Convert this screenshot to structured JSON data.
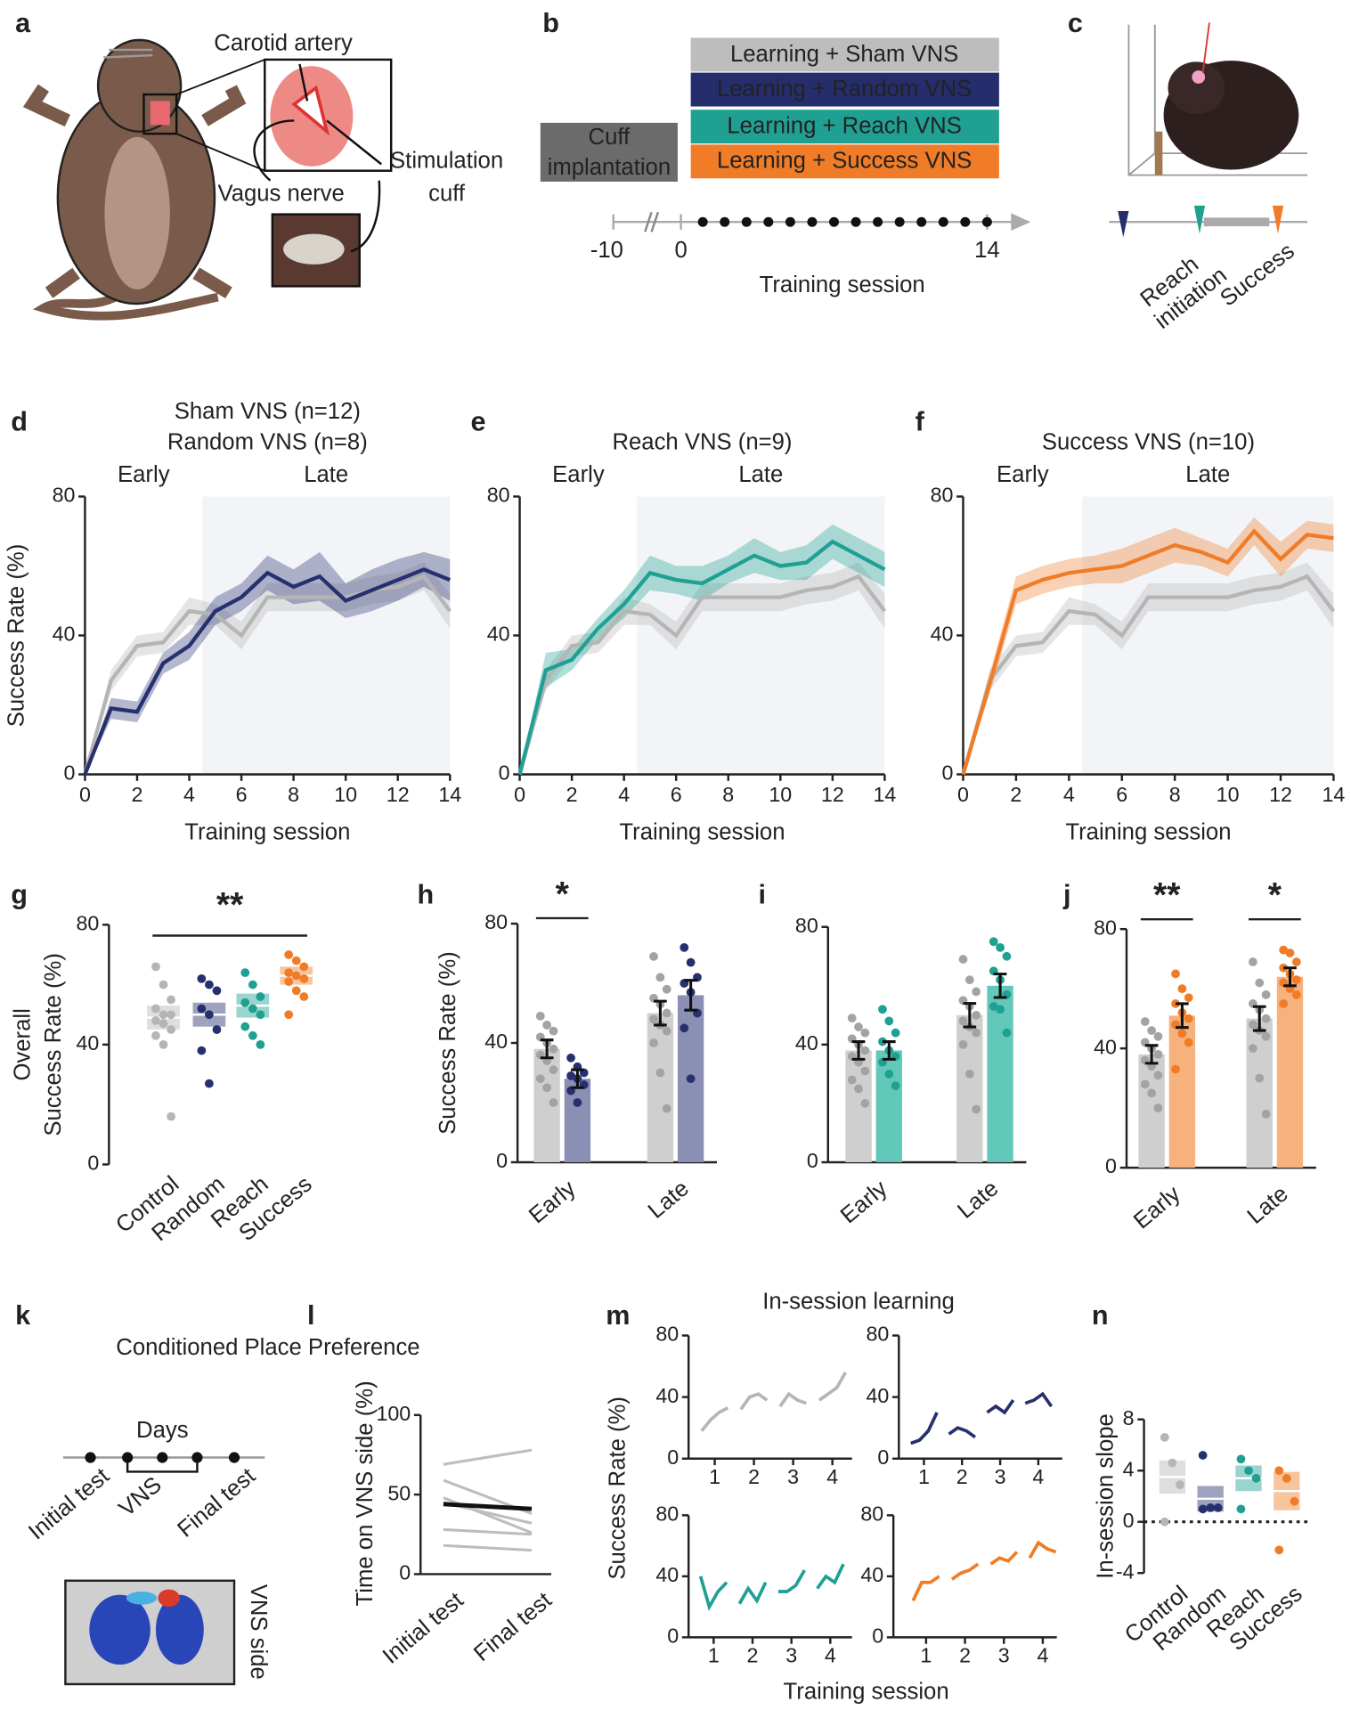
{
  "schematics": {
    "a": {
      "panel": "a",
      "labels": [
        "Carotid artery",
        "Vagus nerve",
        "Stimulation",
        "cuff"
      ]
    },
    "b": {
      "panel": "b",
      "groups": [
        {
          "name": "Learning + Sham VNS",
          "color": "#bdbdbd"
        },
        {
          "name": "Learning + Random VNS",
          "color": "#252d6d"
        },
        {
          "name": "Learning + Reach VNS",
          "color": "#1fa093"
        },
        {
          "name": "Learning + Success VNS",
          "color": "#f07c28"
        }
      ],
      "surgery": [
        "Cuff",
        "implantation"
      ],
      "xticks": [
        -10,
        0,
        14
      ],
      "sessions": [
        1,
        2,
        3,
        4,
        5,
        6,
        7,
        8,
        9,
        10,
        11,
        12,
        13,
        14
      ],
      "xlabel": "Training session"
    },
    "c": {
      "panel": "c",
      "labels": [
        "Reach",
        "initiation",
        "Success"
      ]
    },
    "k": {
      "panel": "k",
      "title": "Conditioned Place Preference",
      "days_label": "Days",
      "events": [
        "Initial test",
        "VNS",
        "Final test"
      ],
      "side_label": "VNS side"
    }
  },
  "chart_data": [
    {
      "type": "line",
      "panel": "d",
      "x": [
        0,
        1,
        2,
        3,
        4,
        5,
        6,
        7,
        8,
        9,
        10,
        11,
        12,
        13,
        14
      ],
      "xlim": [
        0,
        14
      ],
      "ylim": [
        0,
        80
      ],
      "xticks": [
        0,
        2,
        4,
        6,
        8,
        10,
        12,
        14
      ],
      "yticks": [
        0,
        40,
        80
      ],
      "xlabel": "Training session",
      "ylabel": "Success Rate (%)",
      "regions": [
        {
          "label": "Early",
          "range": [
            0,
            4.5
          ]
        },
        {
          "label": "Late",
          "range": [
            4.5,
            14
          ],
          "shaded": true
        }
      ],
      "series": [
        {
          "name": "Sham VNS (n=12)",
          "color": "#b5b5b5",
          "values": [
            0,
            27,
            37,
            38,
            47,
            46,
            40,
            51,
            51,
            51,
            51,
            53,
            54,
            57,
            47
          ],
          "errors": [
            0,
            3,
            3,
            3,
            4,
            3,
            4,
            4,
            4,
            4,
            4,
            4,
            4,
            4,
            5
          ]
        },
        {
          "name": "Random VNS (n=8)",
          "color": "#27306f",
          "values": [
            0,
            19,
            18,
            32,
            37,
            47,
            51,
            58,
            54,
            57,
            50,
            53,
            56,
            59,
            56
          ],
          "errors": [
            0,
            3,
            3,
            3,
            4,
            4,
            4,
            5,
            5,
            7,
            5,
            6,
            6,
            5,
            6
          ]
        }
      ]
    },
    {
      "type": "line",
      "panel": "e",
      "x": [
        0,
        1,
        2,
        3,
        4,
        5,
        6,
        7,
        8,
        9,
        10,
        11,
        12,
        13,
        14
      ],
      "xlim": [
        0,
        14
      ],
      "ylim": [
        0,
        80
      ],
      "xticks": [
        0,
        2,
        4,
        6,
        8,
        10,
        12,
        14
      ],
      "yticks": [
        0,
        40,
        80
      ],
      "xlabel": "Training session",
      "regions": [
        {
          "label": "Early",
          "range": [
            0,
            4.5
          ]
        },
        {
          "label": "Late",
          "range": [
            4.5,
            14
          ],
          "shaded": true
        }
      ],
      "series": [
        {
          "color": "#b5b5b5",
          "values": [
            0,
            27,
            37,
            38,
            47,
            46,
            40,
            51,
            51,
            51,
            51,
            53,
            54,
            57,
            47
          ],
          "errors": [
            0,
            3,
            3,
            3,
            4,
            3,
            4,
            4,
            4,
            4,
            4,
            4,
            4,
            4,
            5
          ]
        },
        {
          "name": "Reach VNS (n=9)",
          "color": "#1fa093",
          "values": [
            0,
            30,
            33,
            42,
            49,
            58,
            56,
            55,
            59,
            63,
            60,
            61,
            67,
            63,
            59
          ],
          "errors": [
            0,
            5,
            3,
            3,
            4,
            5,
            4,
            5,
            4,
            5,
            4,
            5,
            5,
            5,
            5
          ]
        }
      ]
    },
    {
      "type": "line",
      "panel": "f",
      "x": [
        0,
        1,
        2,
        3,
        4,
        5,
        6,
        7,
        8,
        9,
        10,
        11,
        12,
        13,
        14
      ],
      "xlim": [
        0,
        14
      ],
      "ylim": [
        0,
        80
      ],
      "xticks": [
        0,
        2,
        4,
        6,
        8,
        10,
        12,
        14
      ],
      "yticks": [
        0,
        40,
        80
      ],
      "xlabel": "Training session",
      "regions": [
        {
          "label": "Early",
          "range": [
            0,
            4.5
          ]
        },
        {
          "label": "Late",
          "range": [
            4.5,
            14
          ],
          "shaded": true
        }
      ],
      "series": [
        {
          "color": "#b5b5b5",
          "values": [
            0,
            27,
            37,
            38,
            47,
            46,
            40,
            51,
            51,
            51,
            51,
            53,
            54,
            57,
            47
          ],
          "errors": [
            0,
            3,
            3,
            3,
            4,
            3,
            4,
            4,
            4,
            4,
            4,
            4,
            4,
            4,
            5
          ]
        },
        {
          "name": "Success VNS (n=10)",
          "color": "#f07c28",
          "values": [
            0,
            26,
            53,
            56,
            58,
            59,
            60,
            63,
            66,
            64,
            61,
            70,
            62,
            69,
            68
          ],
          "errors": [
            0,
            3,
            4,
            4,
            4,
            4,
            5,
            5,
            5,
            4,
            4,
            4,
            5,
            4,
            4
          ]
        }
      ]
    },
    {
      "type": "dot_box",
      "panel": "g",
      "categories": [
        "Control",
        "Random",
        "Reach",
        "Success"
      ],
      "colors": [
        "#b5b5b5",
        "#27306f",
        "#1fa093",
        "#f07c28"
      ],
      "means": [
        49,
        50,
        53,
        63
      ],
      "errors": [
        4,
        4,
        4,
        3
      ],
      "points": [
        [
          66,
          60,
          55,
          52,
          50,
          50,
          48,
          47,
          45,
          43,
          40,
          16
        ],
        [
          62,
          60,
          58,
          52,
          50,
          45,
          38,
          27
        ],
        [
          64,
          60,
          56,
          54,
          52,
          50,
          46,
          43,
          40
        ],
        [
          70,
          68,
          66,
          64,
          63,
          62,
          61,
          58,
          56,
          50
        ]
      ],
      "ylim": [
        0,
        80
      ],
      "yticks": [
        0,
        40,
        80
      ],
      "ylabel": [
        "Overall",
        "Success Rate (%)"
      ],
      "annotations": [
        {
          "text": "**",
          "from": 0,
          "to": 3
        }
      ]
    },
    {
      "type": "bar",
      "panel": "h",
      "categories": [
        "Early",
        "Late"
      ],
      "ylim": [
        0,
        80
      ],
      "yticks": [
        0,
        40,
        80
      ],
      "ylabel": "Success Rate (%)",
      "series": [
        {
          "color": "#cfcfcf",
          "point_color": "#a3a3a3",
          "values": [
            38,
            50
          ],
          "errors": [
            3,
            4
          ],
          "points": [
            [
              49,
              46,
              44,
              42,
              40,
              38,
              36,
              34,
              31,
              28,
              25,
              20
            ],
            [
              69,
              62,
              58,
              55,
              53,
              50,
              48,
              46,
              44,
              40,
              30,
              18
            ]
          ]
        },
        {
          "color": "#8b8fb4",
          "point_color": "#27306f",
          "values": [
            28,
            56
          ],
          "errors": [
            3,
            5
          ],
          "points": [
            [
              35,
              32,
              30,
              29,
              28,
              26,
              24,
              20
            ],
            [
              72,
              67,
              62,
              60,
              57,
              50,
              45,
              28
            ]
          ]
        }
      ],
      "annotations": [
        {
          "text": "*",
          "category": 0
        }
      ]
    },
    {
      "type": "bar",
      "panel": "i",
      "categories": [
        "Early",
        "Late"
      ],
      "ylim": [
        0,
        80
      ],
      "yticks": [
        0,
        40,
        80
      ],
      "series": [
        {
          "color": "#cfcfcf",
          "point_color": "#a3a3a3",
          "values": [
            38,
            50
          ],
          "errors": [
            3,
            4
          ],
          "points": [
            [
              49,
              46,
              44,
              42,
              40,
              38,
              36,
              34,
              31,
              28,
              25,
              20
            ],
            [
              69,
              62,
              58,
              55,
              53,
              50,
              48,
              46,
              44,
              40,
              30,
              18
            ]
          ]
        },
        {
          "color": "#62c9ba",
          "point_color": "#1fa093",
          "values": [
            38,
            60
          ],
          "errors": [
            3,
            4
          ],
          "points": [
            [
              52,
              48,
              44,
              41,
              38,
              36,
              34,
              30,
              26
            ],
            [
              75,
              73,
              70,
              65,
              62,
              57,
              53,
              52,
              44
            ]
          ]
        }
      ],
      "annotations": []
    },
    {
      "type": "bar",
      "panel": "j",
      "categories": [
        "Early",
        "Late"
      ],
      "ylim": [
        0,
        80
      ],
      "yticks": [
        0,
        40,
        80
      ],
      "series": [
        {
          "color": "#cfcfcf",
          "point_color": "#a3a3a3",
          "values": [
            38,
            50
          ],
          "errors": [
            3,
            4
          ],
          "points": [
            [
              49,
              46,
              44,
              42,
              40,
              38,
              36,
              34,
              31,
              28,
              25,
              20
            ],
            [
              69,
              62,
              58,
              55,
              53,
              50,
              48,
              46,
              44,
              40,
              30,
              18
            ]
          ]
        },
        {
          "color": "#f6b17c",
          "point_color": "#f07c28",
          "values": [
            51,
            64
          ],
          "errors": [
            4,
            3
          ],
          "points": [
            [
              65,
              60,
              57,
              55,
              52,
              50,
              48,
              45,
              42,
              33
            ],
            [
              73,
              72,
              69,
              67,
              65,
              63,
              62,
              60,
              58,
              55
            ]
          ]
        }
      ],
      "annotations": [
        {
          "text": "**",
          "category": 0
        },
        {
          "text": "*",
          "category": 1
        }
      ]
    },
    {
      "type": "paired",
      "panel": "l",
      "categories": [
        "Initial test",
        "Final test"
      ],
      "ylim": [
        0,
        100
      ],
      "yticks": [
        0,
        50,
        100
      ],
      "ylabel": "Time on VNS side (%)",
      "lines": [
        [
          69,
          78
        ],
        [
          59,
          38
        ],
        [
          48,
          26
        ],
        [
          45,
          32
        ],
        [
          28,
          25
        ],
        [
          18,
          15
        ]
      ],
      "mean": [
        44,
        41
      ]
    },
    {
      "type": "small_multiples",
      "panel": "m",
      "title": "In-session learning",
      "ylabel": "Success Rate (%)",
      "xlabel": "Training session",
      "xticks": [
        1,
        2,
        3,
        4
      ],
      "ylim": [
        0,
        80
      ],
      "yticks": [
        0,
        40,
        80
      ],
      "panels": [
        {
          "color": "#b5b5b5",
          "sessions": [
            [
              18,
              25,
              30,
              33
            ],
            [
              32,
              40,
              42,
              38
            ],
            [
              34,
              42,
              38,
              36
            ],
            [
              38,
              42,
              46,
              56
            ]
          ]
        },
        {
          "color": "#27306f",
          "sessions": [
            [
              10,
              12,
              18,
              30
            ],
            [
              16,
              20,
              18,
              14
            ],
            [
              30,
              34,
              30,
              38
            ],
            [
              36,
              38,
              42,
              34
            ]
          ]
        },
        {
          "color": "#1fa093",
          "sessions": [
            [
              40,
              20,
              30,
              36
            ],
            [
              22,
              32,
              24,
              36
            ],
            [
              30,
              30,
              34,
              44
            ],
            [
              32,
              40,
              36,
              48
            ]
          ]
        },
        {
          "color": "#f07c28",
          "sessions": [
            [
              24,
              36,
              36,
              40
            ],
            [
              38,
              42,
              44,
              48
            ],
            [
              48,
              52,
              50,
              56
            ],
            [
              52,
              62,
              58,
              56
            ]
          ]
        }
      ]
    },
    {
      "type": "dot_box",
      "panel": "n",
      "categories": [
        "Control",
        "Random",
        "Reach",
        "Success"
      ],
      "colors": [
        "#b5b5b5",
        "#27306f",
        "#1fa093",
        "#f07c28"
      ],
      "means": [
        3.5,
        1.8,
        3.4,
        2.4
      ],
      "errors": [
        1.3,
        1,
        1,
        1.5
      ],
      "points": [
        [
          6.6,
          4.6,
          2.9,
          0
        ],
        [
          5.2,
          1.1,
          1.1,
          1
        ],
        [
          4.9,
          4,
          3.4,
          1
        ],
        [
          4,
          3.4,
          1.6,
          -2.2
        ]
      ],
      "ylim": [
        -4,
        8
      ],
      "yticks": [
        -4,
        0,
        4,
        8
      ],
      "ylabel": "In-session slope",
      "zero_line": true,
      "annotations": []
    }
  ]
}
